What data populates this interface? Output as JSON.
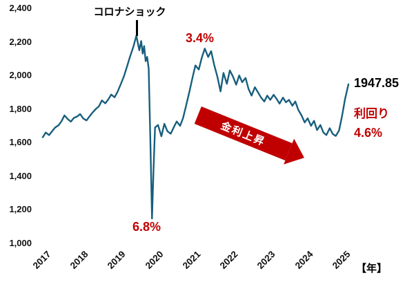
{
  "colors": {
    "line": "#175e7d",
    "accent_red": "#c00000",
    "text": "#000000"
  },
  "chart_data": {
    "type": "line",
    "title": "",
    "x_unit_label": "【年】",
    "x_ticks": [
      2017,
      2018,
      2019,
      2020,
      2021,
      2022,
      2023,
      2024,
      2025
    ],
    "y_ticks": [
      1000,
      1200,
      1400,
      1600,
      1800,
      2000,
      2200,
      2400
    ],
    "xlim": [
      2017,
      2025.17
    ],
    "ylim": [
      1000,
      2400
    ],
    "grid": false,
    "legend": false,
    "x": [
      2017.0,
      2017.08,
      2017.17,
      2017.25,
      2017.33,
      2017.42,
      2017.5,
      2017.58,
      2017.67,
      2017.75,
      2017.83,
      2017.92,
      2018.0,
      2018.08,
      2018.17,
      2018.25,
      2018.33,
      2018.42,
      2018.5,
      2018.58,
      2018.67,
      2018.75,
      2018.83,
      2018.92,
      2019.0,
      2019.08,
      2019.17,
      2019.25,
      2019.33,
      2019.42,
      2019.5,
      2019.58,
      2019.63,
      2019.67,
      2019.71,
      2019.75,
      2019.79,
      2019.83,
      2019.88,
      2019.92,
      2019.96,
      2020.0,
      2020.08,
      2020.17,
      2020.25,
      2020.33,
      2020.42,
      2020.5,
      2020.58,
      2020.67,
      2020.75,
      2020.83,
      2020.92,
      2021.0,
      2021.08,
      2021.17,
      2021.25,
      2021.33,
      2021.42,
      2021.5,
      2021.58,
      2021.67,
      2021.75,
      2021.83,
      2021.92,
      2022.0,
      2022.08,
      2022.17,
      2022.25,
      2022.33,
      2022.42,
      2022.5,
      2022.58,
      2022.67,
      2022.75,
      2022.83,
      2022.92,
      2023.0,
      2023.08,
      2023.17,
      2023.25,
      2023.33,
      2023.42,
      2023.5,
      2023.58,
      2023.67,
      2023.75,
      2023.83,
      2023.92,
      2024.0,
      2024.08,
      2024.17,
      2024.25,
      2024.33,
      2024.42,
      2024.5,
      2024.58,
      2024.67,
      2024.75,
      2024.83,
      2024.92,
      2025.0,
      2025.08,
      2025.17
    ],
    "y": [
      1632,
      1660,
      1645,
      1668,
      1690,
      1703,
      1727,
      1762,
      1740,
      1725,
      1747,
      1756,
      1770,
      1744,
      1732,
      1757,
      1779,
      1801,
      1816,
      1851,
      1834,
      1857,
      1886,
      1870,
      1903,
      1946,
      1996,
      2052,
      2110,
      2170,
      2237,
      2150,
      2205,
      2130,
      2175,
      2085,
      2110,
      2040,
      1560,
      1148,
      1440,
      1690,
      1705,
      1638,
      1712,
      1668,
      1653,
      1691,
      1726,
      1700,
      1746,
      1820,
      1905,
      1985,
      2060,
      2035,
      2105,
      2160,
      2110,
      2145,
      2065,
      1990,
      1905,
      2015,
      1950,
      2030,
      1995,
      1945,
      2000,
      1960,
      1985,
      1920,
      1880,
      1930,
      1900,
      1870,
      1845,
      1880,
      1855,
      1885,
      1860,
      1832,
      1868,
      1840,
      1855,
      1820,
      1845,
      1795,
      1760,
      1720,
      1745,
      1700,
      1730,
      1675,
      1705,
      1660,
      1645,
      1686,
      1652,
      1640,
      1672,
      1760,
      1860,
      1947.85
    ],
    "annotations": {
      "corona_label": "コロナショック",
      "corona_x": 2019.5,
      "peak_yield_label": "3.4%",
      "bottom_yield_label": "6.8%",
      "arrow_label": "金利上昇",
      "current_value": "1947.85",
      "yield_title": "利回り",
      "current_yield": "4.6%"
    }
  }
}
